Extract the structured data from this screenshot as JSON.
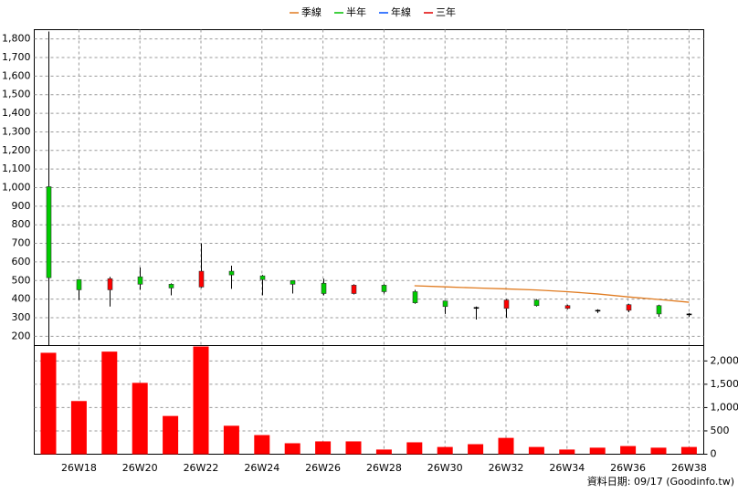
{
  "chart_data": {
    "type": "candlestick",
    "categories": [
      null,
      "26W18",
      null,
      "26W20",
      null,
      "26W22",
      null,
      "26W24",
      null,
      "26W26",
      null,
      "26W28",
      null,
      "26W30",
      null,
      "26W32",
      null,
      "26W34",
      null,
      "26W36",
      null,
      "26W38"
    ],
    "open": [
      515,
      450,
      510,
      480,
      460,
      550,
      530,
      505,
      480,
      430,
      475,
      440,
      380,
      360,
      355,
      395,
      365,
      365,
      340,
      370,
      320,
      320
    ],
    "high": [
      1840,
      505,
      520,
      570,
      485,
      700,
      580,
      530,
      500,
      510,
      480,
      480,
      450,
      390,
      360,
      400,
      400,
      370,
      345,
      375,
      370,
      325
    ],
    "low": [
      150,
      395,
      360,
      450,
      420,
      460,
      455,
      420,
      430,
      420,
      425,
      430,
      375,
      320,
      290,
      300,
      360,
      345,
      325,
      330,
      305,
      305
    ],
    "close": [
      1005,
      505,
      450,
      520,
      480,
      465,
      550,
      525,
      500,
      485,
      430,
      475,
      440,
      390,
      355,
      350,
      395,
      350,
      340,
      340,
      365,
      320
    ],
    "up_color": "#00cc00",
    "down_color": "#ff0000",
    "series": [
      {
        "name": "季線",
        "color": "#e07b20",
        "values": [
          null,
          null,
          null,
          null,
          null,
          null,
          null,
          null,
          null,
          null,
          null,
          null,
          472,
          466,
          460,
          455,
          449,
          440,
          428,
          412,
          398,
          383
        ]
      },
      {
        "name": "半年",
        "color": "#00c000",
        "values": [
          null,
          null,
          null,
          null,
          null,
          null,
          null,
          null,
          null,
          null,
          null,
          null,
          null,
          null,
          null,
          null,
          null,
          null,
          null,
          null,
          null,
          null
        ]
      },
      {
        "name": "年線",
        "color": "#0050ff",
        "values": [
          null,
          null,
          null,
          null,
          null,
          null,
          null,
          null,
          null,
          null,
          null,
          null,
          null,
          null,
          null,
          null,
          null,
          null,
          null,
          null,
          null,
          null
        ]
      },
      {
        "name": "三年",
        "color": "#e00000",
        "values": [
          null,
          null,
          null,
          null,
          null,
          null,
          null,
          null,
          null,
          null,
          null,
          null,
          null,
          null,
          null,
          null,
          null,
          null,
          null,
          null,
          null,
          null
        ]
      }
    ],
    "ylim": [
      150,
      1850
    ],
    "yticks": [
      200,
      300,
      400,
      500,
      600,
      700,
      800,
      900,
      {
        "value": 1000,
        "label": "1,000"
      },
      {
        "value": 1100,
        "label": "1,100"
      },
      {
        "value": 1200,
        "label": "1,200"
      },
      {
        "value": 1300,
        "label": "1,300"
      },
      {
        "value": 1400,
        "label": "1,400"
      },
      {
        "value": 1500,
        "label": "1,500"
      },
      {
        "value": 1600,
        "label": "1,600"
      },
      {
        "value": 1700,
        "label": "1,700"
      },
      {
        "value": 1800,
        "label": "1,800"
      }
    ],
    "volume": {
      "color": "#ff0000",
      "values": [
        2175,
        1140,
        2200,
        1530,
        820,
        2310,
        610,
        410,
        235,
        275,
        275,
        100,
        255,
        155,
        215,
        350,
        155,
        100,
        140,
        175,
        140,
        155
      ],
      "ylim": [
        0,
        2330
      ],
      "yticks": [
        0,
        500,
        {
          "value": 1000,
          "label": "1,000"
        },
        {
          "value": 1500,
          "label": "1,500"
        },
        {
          "value": 2000,
          "label": "2,000"
        }
      ]
    },
    "grid": true,
    "footer": "資料日期: 09/17  (Goodinfo.tw)"
  }
}
